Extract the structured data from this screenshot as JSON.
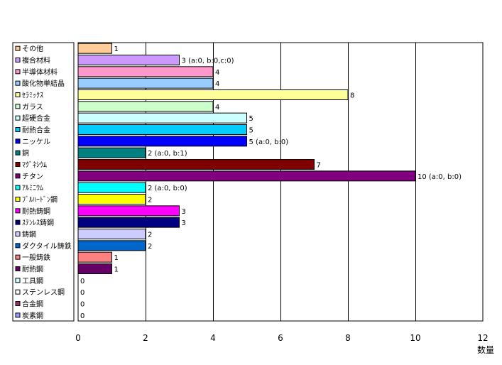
{
  "chart_data": {
    "type": "bar",
    "orientation": "horizontal",
    "categories": [
      "その他",
      "複合材料",
      "半導体材料",
      "酸化物単結晶",
      "ｾﾗﾐｯｸｽ",
      "ガラス",
      "超硬合金",
      "耐熱合金",
      "ニッケル",
      "銅",
      "ﾏｸﾞﾈｼｳﾑ",
      "チタン",
      "ｱﾙﾐﾆｳﾑ",
      "ﾌﾞﾙﾊｰﾄﾞﾝ鋼",
      "耐熱鋳鋼",
      "ｽﾃﾝﾚｽ鋳鋼",
      "鋳鋼",
      "ダクタイル鋳鉄",
      "一般鋳鉄",
      "耐熱鋼",
      "工具鋼",
      "ステンレス鋼",
      "合金鋼",
      "炭素鋼"
    ],
    "values": [
      1,
      3,
      4,
      4,
      8,
      4,
      5,
      5,
      5,
      2,
      7,
      10,
      2,
      2,
      3,
      3,
      2,
      2,
      1,
      1,
      0,
      0,
      0,
      0
    ],
    "data_labels": [
      "1",
      "3 (a:0, b:0,c:0)",
      "4",
      "4",
      "8",
      "4",
      "5",
      "5",
      "5 (a:0, b:0)",
      "2 (a:0, b:1)",
      "7",
      "10 (a:0, b:0)",
      "2 (a:0, b:0)",
      "2",
      "3",
      "3",
      "2",
      "2",
      "1",
      "1",
      "0",
      "0",
      "0",
      "0"
    ],
    "colors": [
      "#FFCC99",
      "#CC99FF",
      "#FF99CC",
      "#99CCFF",
      "#FFFF99",
      "#CCFFCC",
      "#CCFFFF",
      "#00CCFF",
      "#0000FF",
      "#008080",
      "#800000",
      "#800080",
      "#00FFFF",
      "#FFFF00",
      "#FF00FF",
      "#000080",
      "#CCCCFF",
      "#0066CC",
      "#FF8080",
      "#660066",
      "#CCFFFF",
      "#FFFFFF",
      "#993366",
      "#9999FF"
    ],
    "xlim": [
      0,
      12
    ],
    "xticks": [
      0,
      2,
      4,
      6,
      8,
      10,
      12
    ],
    "xlabel": "数量",
    "grid": "vertical",
    "legend_position": "left"
  }
}
